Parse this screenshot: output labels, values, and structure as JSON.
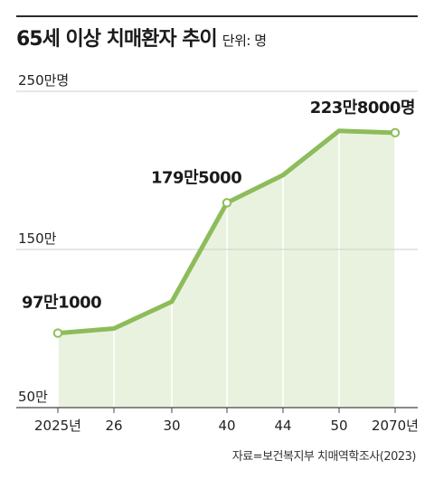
{
  "title": "65세 이상 치매환자 추이",
  "unit_label": "단위: 명",
  "source": "자료=보건복지부 치매역학조사(2023)",
  "colors": {
    "line": "#8dbc5a",
    "fill": "#e9f2de",
    "marker_fill": "#ffffff",
    "grid": "#cfcfcf",
    "axis": "#444444"
  },
  "chart_data": {
    "type": "area",
    "title": "65세 이상 치매환자 추이",
    "unit": "명",
    "x": [
      "2025년",
      "26",
      "30",
      "40",
      "44",
      "50",
      "2070년"
    ],
    "series": [
      {
        "values": [
          971000,
          1000000,
          1170000,
          1795000,
          1970000,
          2250000,
          2238000
        ]
      }
    ],
    "data_labels": [
      {
        "index": 0,
        "text": "97만1000"
      },
      {
        "index": 3,
        "text": "179만5000"
      },
      {
        "index": 6,
        "text": "223만8000명"
      }
    ],
    "y_ticks": [
      {
        "value": 2500000,
        "label": "250만명"
      },
      {
        "value": 1500000,
        "label": "150만"
      },
      {
        "value": 500000,
        "label": "50만"
      }
    ],
    "ylim": [
      500000,
      2500000
    ],
    "grid": true
  }
}
